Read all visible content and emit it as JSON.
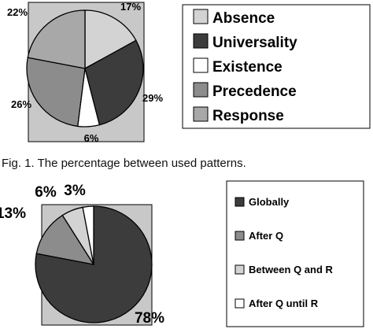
{
  "caption": "Fig. 1. The percentage between used patterns.",
  "chart_data": [
    {
      "type": "pie",
      "slices": [
        {
          "label": "Absence",
          "value": 17,
          "value_label": "17%",
          "color": "#d3d3d3"
        },
        {
          "label": "Universality",
          "value": 29,
          "value_label": "29%",
          "color": "#3c3c3c"
        },
        {
          "label": "Existence",
          "value": 6,
          "value_label": "6%",
          "color": "#ffffff"
        },
        {
          "label": "Precedence",
          "value": 26,
          "value_label": "26%",
          "color": "#8c8c8c"
        },
        {
          "label": "Response",
          "value": 22,
          "value_label": "22%",
          "color": "#a8a8a8"
        }
      ],
      "legend_placement": "right",
      "plot_background": "#c8c8c8"
    },
    {
      "type": "pie",
      "slices": [
        {
          "label": "Globally",
          "value": 78,
          "value_label": "78%",
          "color": "#3c3c3c"
        },
        {
          "label": "After Q",
          "value": 13,
          "value_label": "13%",
          "color": "#8c8c8c"
        },
        {
          "label": "Between Q and R",
          "value": 6,
          "value_label": "6%",
          "color": "#d3d3d3"
        },
        {
          "label": "After Q until R",
          "value": 3,
          "value_label": "3%",
          "color": "#ffffff"
        }
      ],
      "legend_placement": "right",
      "plot_background": "#c8c8c8"
    }
  ]
}
